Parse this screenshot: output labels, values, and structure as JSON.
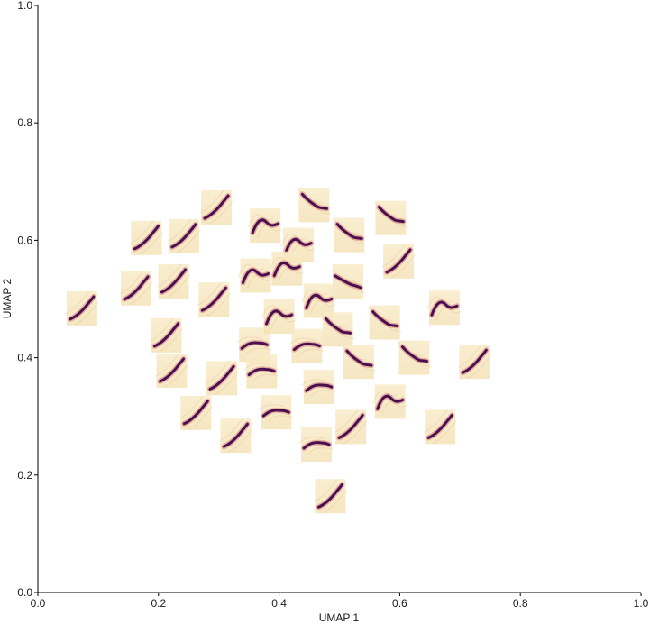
{
  "chart_data": {
    "type": "scatter",
    "marker": "thumbnail",
    "xlabel": "UMAP 1",
    "ylabel": "UMAP 2",
    "xlim": [
      0.0,
      1.0
    ],
    "ylim": [
      0.0,
      1.0
    ],
    "xticks": [
      "0.0",
      "0.2",
      "0.4",
      "0.6",
      "0.8",
      "1.0"
    ],
    "yticks": [
      "0.0",
      "0.2",
      "0.4",
      "0.6",
      "0.8",
      "1.0"
    ],
    "grid": false,
    "colors": {
      "dark": "#4a0f4f",
      "mid": "#c2405a",
      "light": "#f6e4b8",
      "axis": "#000000"
    },
    "points": [
      {
        "x": 0.073,
        "y": 0.484,
        "shape": "rise"
      },
      {
        "x": 0.163,
        "y": 0.518,
        "shape": "rise"
      },
      {
        "x": 0.18,
        "y": 0.604,
        "shape": "rise"
      },
      {
        "x": 0.242,
        "y": 0.607,
        "shape": "rise"
      },
      {
        "x": 0.296,
        "y": 0.656,
        "shape": "rise"
      },
      {
        "x": 0.225,
        "y": 0.53,
        "shape": "rise"
      },
      {
        "x": 0.292,
        "y": 0.499,
        "shape": "rise"
      },
      {
        "x": 0.213,
        "y": 0.438,
        "shape": "rise"
      },
      {
        "x": 0.222,
        "y": 0.378,
        "shape": "rise"
      },
      {
        "x": 0.305,
        "y": 0.365,
        "shape": "rise"
      },
      {
        "x": 0.262,
        "y": 0.306,
        "shape": "rise"
      },
      {
        "x": 0.328,
        "y": 0.267,
        "shape": "rise"
      },
      {
        "x": 0.359,
        "y": 0.422,
        "shape": "flat"
      },
      {
        "x": 0.371,
        "y": 0.377,
        "shape": "flat"
      },
      {
        "x": 0.395,
        "y": 0.307,
        "shape": "flat"
      },
      {
        "x": 0.361,
        "y": 0.54,
        "shape": "hump"
      },
      {
        "x": 0.377,
        "y": 0.625,
        "shape": "hump"
      },
      {
        "x": 0.432,
        "y": 0.592,
        "shape": "hump"
      },
      {
        "x": 0.413,
        "y": 0.552,
        "shape": "hump"
      },
      {
        "x": 0.458,
        "y": 0.66,
        "shape": "fall"
      },
      {
        "x": 0.516,
        "y": 0.609,
        "shape": "fall"
      },
      {
        "x": 0.585,
        "y": 0.638,
        "shape": "fall"
      },
      {
        "x": 0.598,
        "y": 0.564,
        "shape": "rise"
      },
      {
        "x": 0.514,
        "y": 0.53,
        "shape": "noisy"
      },
      {
        "x": 0.466,
        "y": 0.497,
        "shape": "hump"
      },
      {
        "x": 0.4,
        "y": 0.47,
        "shape": "hump"
      },
      {
        "x": 0.446,
        "y": 0.42,
        "shape": "flat"
      },
      {
        "x": 0.497,
        "y": 0.448,
        "shape": "fall"
      },
      {
        "x": 0.575,
        "y": 0.46,
        "shape": "fall"
      },
      {
        "x": 0.674,
        "y": 0.485,
        "shape": "hump"
      },
      {
        "x": 0.532,
        "y": 0.393,
        "shape": "fall"
      },
      {
        "x": 0.624,
        "y": 0.4,
        "shape": "fall"
      },
      {
        "x": 0.724,
        "y": 0.393,
        "shape": "rise"
      },
      {
        "x": 0.466,
        "y": 0.35,
        "shape": "flat"
      },
      {
        "x": 0.584,
        "y": 0.325,
        "shape": "hump"
      },
      {
        "x": 0.519,
        "y": 0.282,
        "shape": "rise"
      },
      {
        "x": 0.462,
        "y": 0.252,
        "shape": "flat"
      },
      {
        "x": 0.667,
        "y": 0.282,
        "shape": "rise"
      },
      {
        "x": 0.485,
        "y": 0.164,
        "shape": "rise"
      }
    ]
  }
}
